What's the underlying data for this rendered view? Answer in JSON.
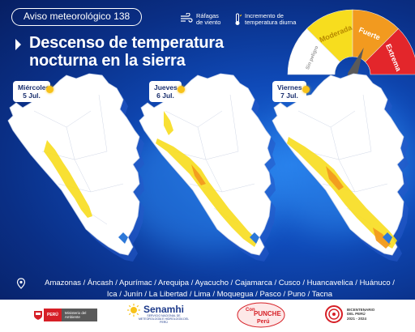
{
  "bulletin": {
    "label": "Aviso meteorológico 138"
  },
  "headline": {
    "line1": "Descenso de temperatura",
    "line2": "nocturna en la sierra"
  },
  "legend": {
    "wind": {
      "icon": "wind-gust-icon",
      "line1": "Ráfagas",
      "line2": "de viento"
    },
    "temp": {
      "icon": "thermometer-icon",
      "line1": "Incremento de",
      "line2": "temperatura diurna"
    }
  },
  "severity": {
    "levels": [
      {
        "label": "Sin peligro",
        "color": "#ffffff"
      },
      {
        "label": "Moderada",
        "color": "#f7dd1e"
      },
      {
        "label": "Fuerte",
        "color": "#f29a1f"
      },
      {
        "label": "Extrema",
        "color": "#e3262b"
      }
    ],
    "needle_level": "Fuerte"
  },
  "days": [
    {
      "weekday": "Miércoles",
      "date": "5 Jul.",
      "icon": "sun-icon"
    },
    {
      "weekday": "Jueves",
      "date": "6 Jul.",
      "icon": "sun-icon"
    },
    {
      "weekday": "Viernes",
      "date": "7 Jul.",
      "icon": "sun-icon"
    }
  ],
  "colors": {
    "moderate": "#f7dd1e",
    "strong": "#f29a1f",
    "map_fill": "#ffffff",
    "lakes": "#2d78d8",
    "background": "#0a2f86"
  },
  "regions": {
    "icon": "location-pin-icon",
    "line1": "Amazonas / Áncash / Apurímac / Arequipa / Ayacucho / Cajamarca / Cusco / Huancavelica / Huánuco /",
    "line2": "Ica / Junín / La Libertad / Lima / Moquegua / Pasco / Puno / Tacna"
  },
  "footer": {
    "gov_country": "PERÚ",
    "gov_ministry": "Ministerio del Ambiente",
    "senamhi_name": "Senamhi",
    "senamhi_sub": "SERVICIO NACIONAL DE METEOROLOGÍA E HIDROLOGÍA DEL PERÚ",
    "punche_top": "Con",
    "punche_mid": "PUNCHE",
    "punche_bot": "Perú",
    "bicen_line1": "BICENTENARIO",
    "bicen_line2": "DEL PERÚ",
    "bicen_line3": "2021 - 2024"
  }
}
